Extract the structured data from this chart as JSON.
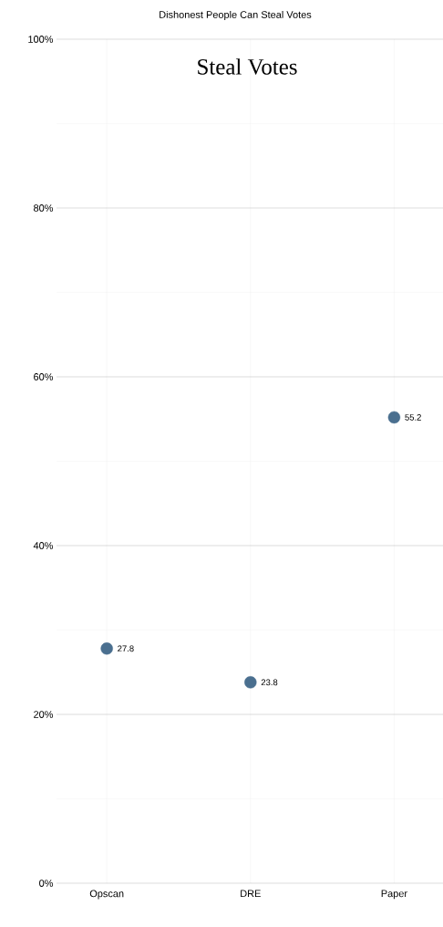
{
  "chart_data": {
    "type": "scatter",
    "title": "Dishonest People Can Steal Votes",
    "annotations": [
      "Steal Votes"
    ],
    "categories": [
      "Opscan",
      "DRE",
      "Paper"
    ],
    "values": [
      27.8,
      23.8,
      55.2
    ],
    "color": "#4a6f8f",
    "marker": "circle",
    "data_labels": true,
    "grid": true,
    "ylim": [
      0,
      100
    ],
    "yticks": [
      {
        "value": 0,
        "label": "0%"
      },
      {
        "value": 10,
        "label": null
      },
      {
        "value": 20,
        "label": "20%"
      },
      {
        "value": 30,
        "label": null
      },
      {
        "value": 40,
        "label": "40%"
      },
      {
        "value": 50,
        "label": null
      },
      {
        "value": 60,
        "label": "60%"
      },
      {
        "value": 70,
        "label": null
      },
      {
        "value": 80,
        "label": "80%"
      },
      {
        "value": 90,
        "label": null
      },
      {
        "value": 100,
        "label": "100%"
      }
    ]
  }
}
